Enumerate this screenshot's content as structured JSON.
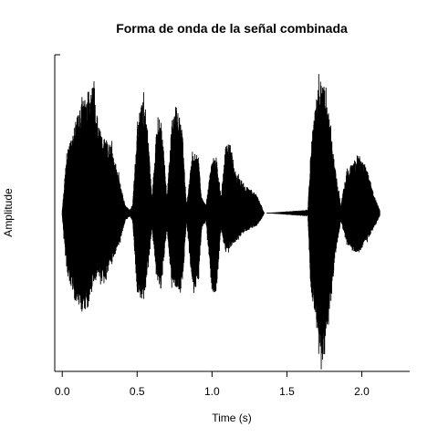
{
  "chart_data": {
    "type": "area",
    "title": "Forma de onda de la señal combinada",
    "xlabel": "Time (s)",
    "ylabel": "Amplitude",
    "xlim": [
      -0.05,
      2.32
    ],
    "ylim": [
      -1.0,
      1.0
    ],
    "x_ticks": [
      "0.0",
      "0.5",
      "1.0",
      "1.5",
      "2.0"
    ],
    "x_tick_values": [
      0.0,
      0.5,
      1.0,
      1.5,
      2.0
    ],
    "grid": false,
    "colors": {
      "waveform": "#000000",
      "zero_line": "#000000",
      "axes": "#000000"
    },
    "zero_line": {
      "y": 0,
      "style": "dashed",
      "x_range": [
        0.0,
        2.13
      ]
    },
    "envelope": {
      "x": [
        0.0,
        0.03,
        0.08,
        0.13,
        0.18,
        0.21,
        0.24,
        0.28,
        0.33,
        0.38,
        0.42,
        0.45,
        0.47,
        0.5,
        0.53,
        0.56,
        0.6,
        0.63,
        0.66,
        0.7,
        0.73,
        0.76,
        0.8,
        0.83,
        0.87,
        0.91,
        0.93,
        0.96,
        1.0,
        1.03,
        1.06,
        1.09,
        1.12,
        1.16,
        1.22,
        1.3,
        1.34,
        1.35,
        1.64,
        1.66,
        1.7,
        1.74,
        1.78,
        1.82,
        1.86,
        1.9,
        1.94,
        1.98,
        2.03,
        2.08,
        2.12
      ],
      "upper": [
        0.02,
        0.38,
        0.55,
        0.7,
        0.78,
        0.86,
        0.55,
        0.48,
        0.42,
        0.22,
        0.05,
        0.02,
        0.05,
        0.55,
        0.72,
        0.66,
        0.1,
        0.55,
        0.62,
        0.1,
        0.58,
        0.68,
        0.55,
        0.05,
        0.4,
        0.35,
        0.1,
        0.05,
        0.35,
        0.35,
        0.1,
        0.42,
        0.45,
        0.25,
        0.18,
        0.12,
        0.02,
        0.0,
        0.02,
        0.4,
        0.8,
        0.85,
        0.62,
        0.3,
        0.05,
        0.28,
        0.32,
        0.38,
        0.3,
        0.12,
        0.02
      ],
      "lower": [
        -0.02,
        -0.38,
        -0.55,
        -0.62,
        -0.6,
        -0.45,
        -0.4,
        -0.45,
        -0.32,
        -0.2,
        -0.05,
        -0.02,
        -0.05,
        -0.5,
        -0.55,
        -0.48,
        -0.1,
        -0.42,
        -0.48,
        -0.1,
        -0.45,
        -0.48,
        -0.5,
        -0.05,
        -0.5,
        -0.45,
        -0.1,
        -0.05,
        -0.5,
        -0.5,
        -0.1,
        -0.25,
        -0.22,
        -0.18,
        -0.12,
        -0.08,
        -0.02,
        0.0,
        -0.02,
        -0.5,
        -0.75,
        -0.95,
        -0.7,
        -0.3,
        -0.05,
        -0.2,
        -0.25,
        -0.25,
        -0.18,
        -0.1,
        -0.02
      ]
    }
  }
}
